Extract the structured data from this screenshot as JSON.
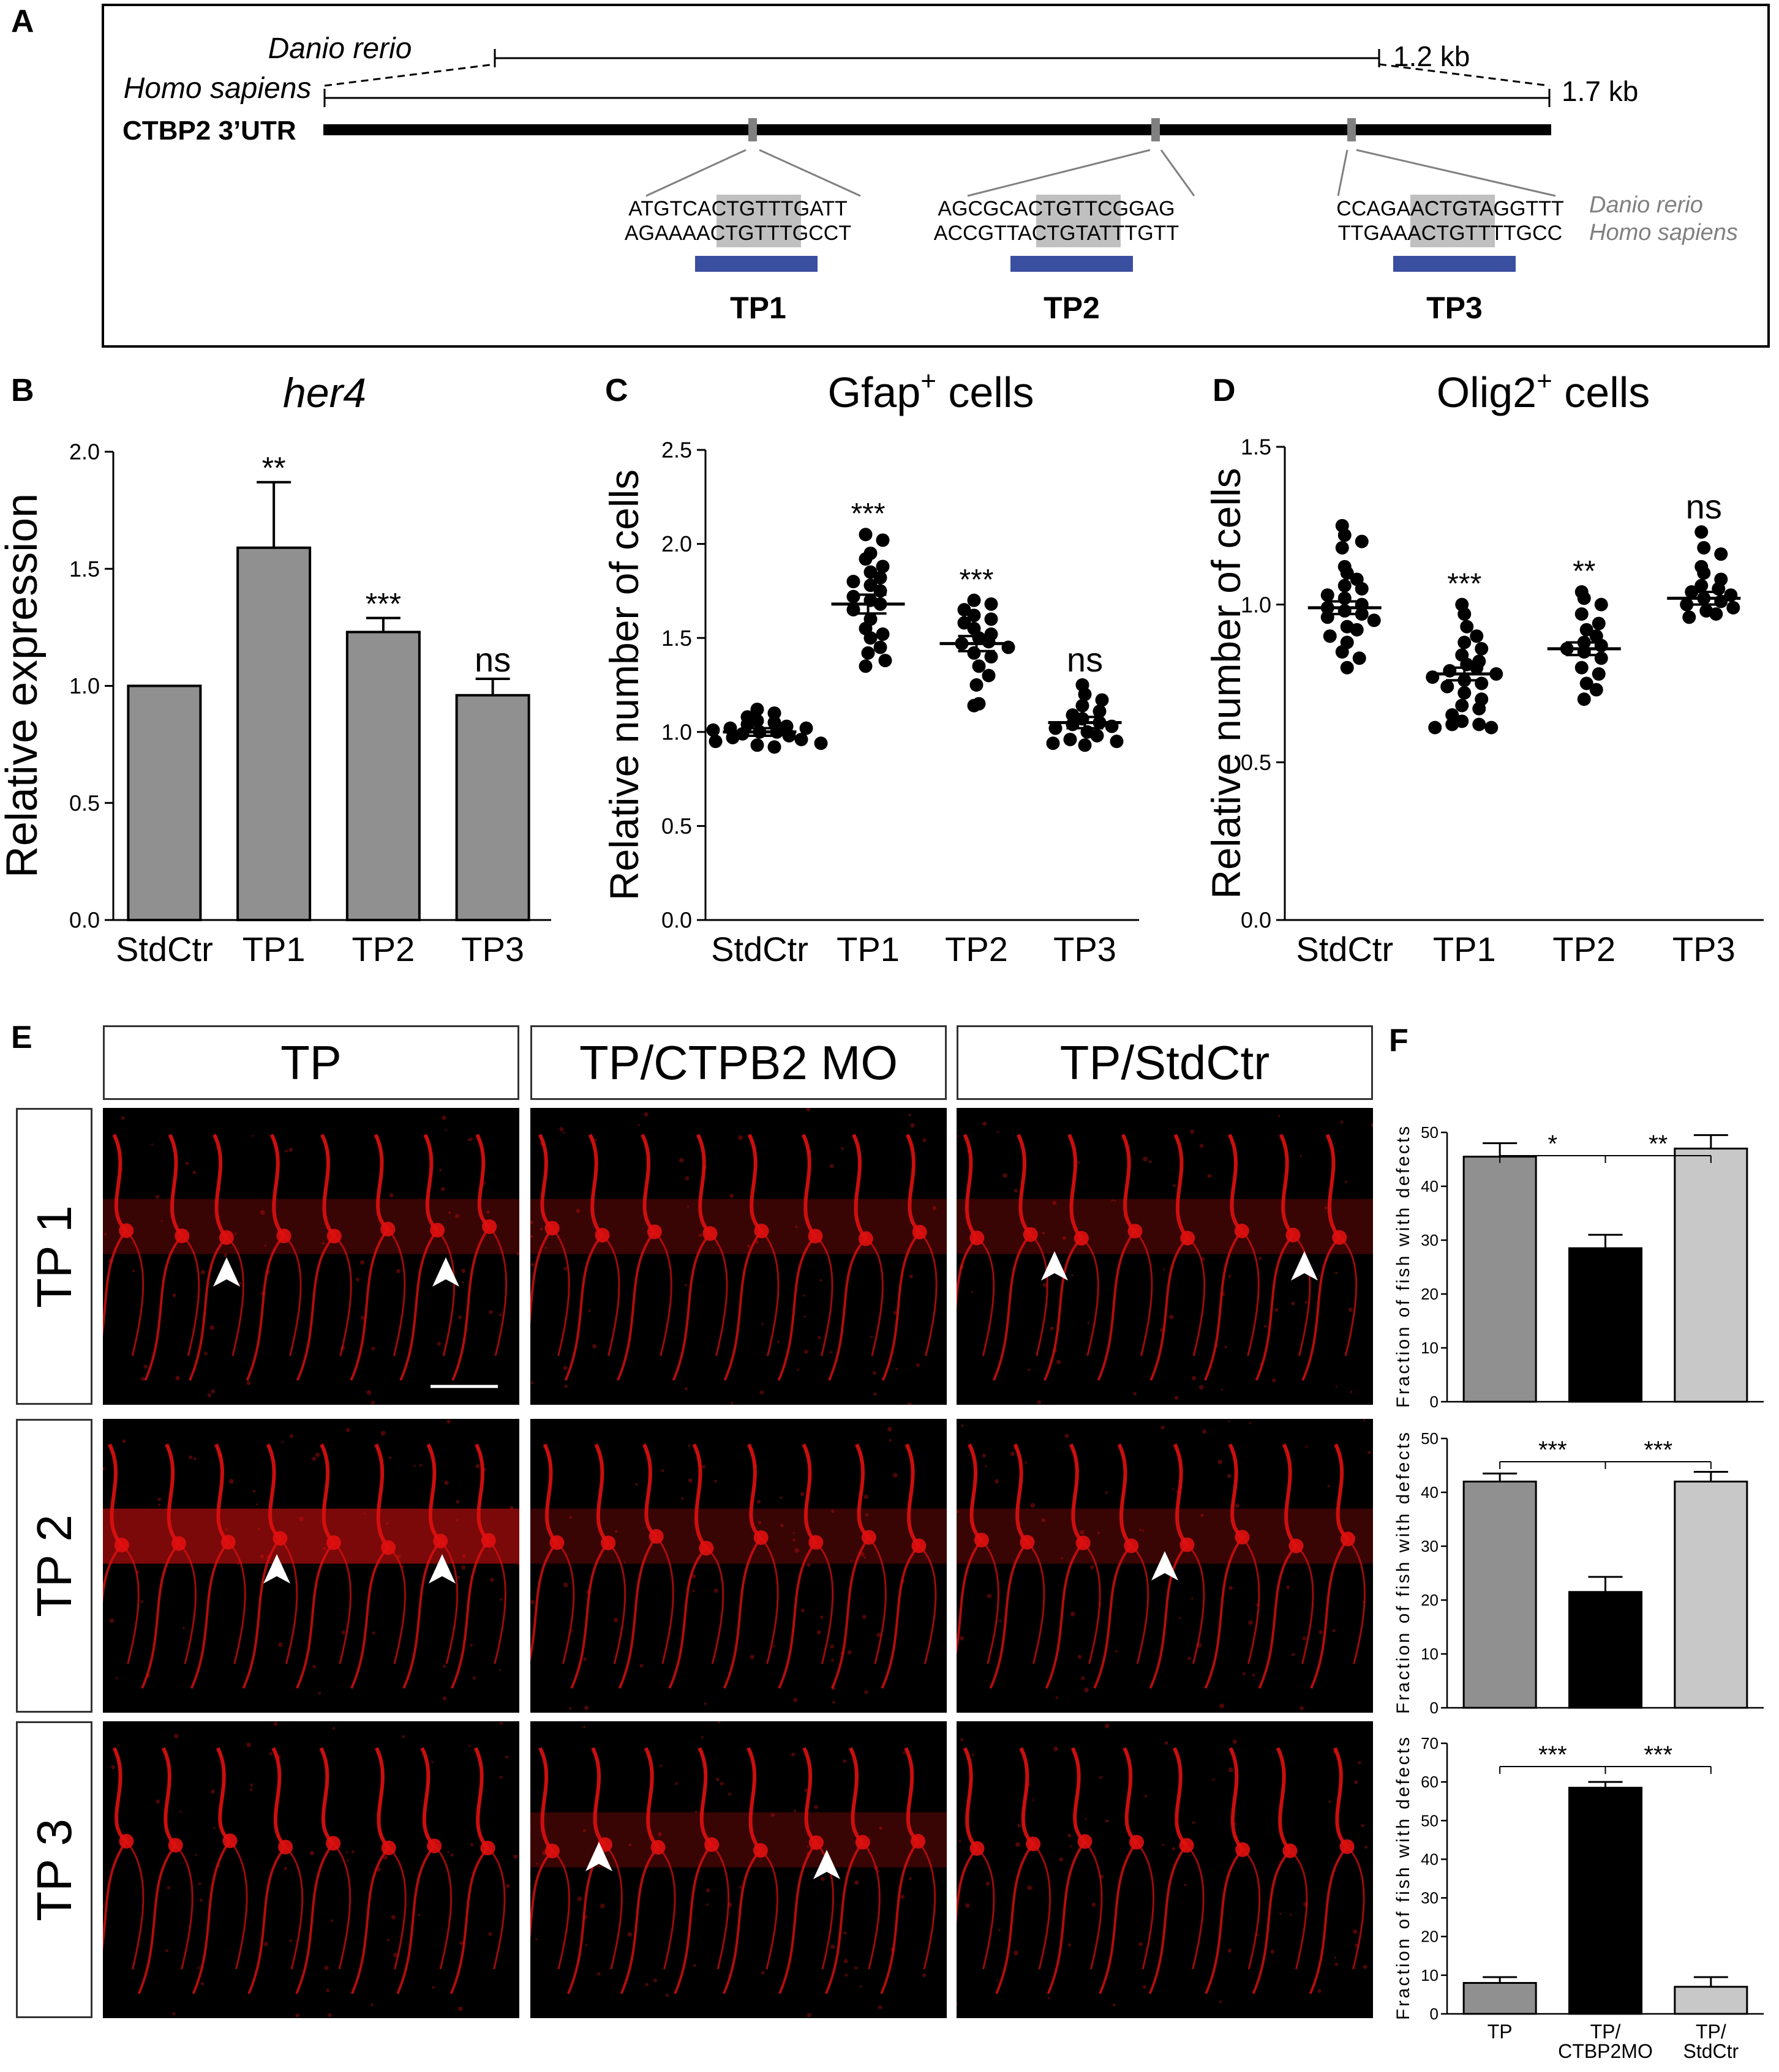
{
  "panels": {
    "A": "A",
    "B": "B",
    "C": "C",
    "D": "D",
    "E": "E",
    "F": "F"
  },
  "panel_a": {
    "species_zebrafish": "Danio rerio",
    "species_human": "Homo sapiens",
    "gene": "CTBP2 3’UTR",
    "length_zebrafish": "1.2 kb",
    "length_human": "1.7 kb",
    "legend_zebrafish": "Danio rerio",
    "legend_human": "Homo sapiens",
    "sites": [
      {
        "label": "TP1",
        "zebrafish_seq": "ATGTCACTGTTTGATT",
        "human_seq": "AGAAAACTGTTTGCCT"
      },
      {
        "label": "TP2",
        "zebrafish_seq": "AGCGCACTGTTCGGAG",
        "human_seq": "ACCGTTACTGTATTTGTT"
      },
      {
        "label": "TP3",
        "zebrafish_seq": "CCAGAACTGTAGGTTT",
        "human_seq": "TTGAAACTGTTTTGCC"
      }
    ],
    "colors": {
      "utr": "#000000",
      "site": "#808080",
      "highlight": "#c0c0c0",
      "protector": "#3a4fa0",
      "legend": "#808080"
    }
  },
  "panel_e": {
    "columns": [
      "TP",
      "TP/CTPB2 MO",
      "TP/StdCtr"
    ],
    "rows": [
      "TP 1",
      "TP 2",
      "TP 3"
    ],
    "image_color": "#e01010"
  },
  "chart_data": [
    {
      "id": "B",
      "type": "bar",
      "title": "her4",
      "ylabel": "Relative expression",
      "categories": [
        "StdCtr",
        "TP1",
        "TP2",
        "TP3"
      ],
      "values": [
        1.0,
        1.59,
        1.23,
        0.96
      ],
      "errors": [
        0.0,
        0.28,
        0.06,
        0.07
      ],
      "significance": [
        "",
        "**",
        "***",
        "ns"
      ],
      "ylim": [
        0,
        2.0
      ],
      "yticks": [
        "0.0",
        "0.5",
        "1.0",
        "1.5",
        "2.0"
      ],
      "bar_color": "#909090"
    },
    {
      "id": "C",
      "type": "scatter",
      "title": "Gfap",
      "title_sup": "+",
      "title_suffix": " cells",
      "ylabel": "Relative number of cells",
      "categories": [
        "StdCtr",
        "TP1",
        "TP2",
        "TP3"
      ],
      "means": [
        1.0,
        1.68,
        1.47,
        1.05
      ],
      "sem": [
        0.02,
        0.05,
        0.04,
        0.03
      ],
      "points": [
        [
          1.12,
          1.1,
          1.08,
          1.06,
          1.05,
          1.04,
          1.03,
          1.02,
          1.02,
          1.01,
          1.0,
          1.0,
          0.99,
          0.98,
          0.97,
          0.96,
          0.95,
          0.94,
          0.93,
          0.92
        ],
        [
          2.05,
          2.02,
          1.95,
          1.92,
          1.88,
          1.85,
          1.82,
          1.8,
          1.78,
          1.75,
          1.72,
          1.7,
          1.68,
          1.65,
          1.6,
          1.55,
          1.52,
          1.5,
          1.45,
          1.42,
          1.38,
          1.35
        ],
        [
          1.7,
          1.68,
          1.65,
          1.62,
          1.6,
          1.58,
          1.55,
          1.52,
          1.5,
          1.48,
          1.47,
          1.45,
          1.42,
          1.4,
          1.35,
          1.3,
          1.25,
          1.15,
          1.14
        ],
        [
          1.25,
          1.2,
          1.17,
          1.14,
          1.11,
          1.09,
          1.07,
          1.05,
          1.04,
          1.03,
          1.02,
          1.0,
          0.98,
          0.96,
          0.95,
          0.94,
          0.93
        ]
      ],
      "significance": [
        "",
        "***",
        "***",
        "ns"
      ],
      "ylim": [
        0,
        2.5
      ],
      "yticks": [
        "0.0",
        "0.5",
        "1.0",
        "1.5",
        "2.0",
        "2.5"
      ]
    },
    {
      "id": "D",
      "type": "scatter",
      "title": "Olig2",
      "title_sup": "+",
      "title_suffix": " cells",
      "ylabel": "Relative number of cells",
      "categories": [
        "StdCtr",
        "TP1",
        "TP2",
        "TP3"
      ],
      "means": [
        0.99,
        0.78,
        0.86,
        1.02
      ],
      "sem": [
        0.02,
        0.02,
        0.02,
        0.02
      ],
      "points": [
        [
          1.25,
          1.22,
          1.2,
          1.18,
          1.12,
          1.1,
          1.08,
          1.06,
          1.05,
          1.03,
          1.02,
          1.0,
          0.99,
          0.98,
          0.97,
          0.96,
          0.95,
          0.93,
          0.92,
          0.9,
          0.88,
          0.85,
          0.83,
          0.8
        ],
        [
          1.0,
          0.97,
          0.93,
          0.9,
          0.88,
          0.86,
          0.84,
          0.82,
          0.81,
          0.8,
          0.79,
          0.78,
          0.77,
          0.76,
          0.75,
          0.74,
          0.72,
          0.7,
          0.68,
          0.67,
          0.65,
          0.63,
          0.62,
          0.62,
          0.61,
          0.61
        ],
        [
          1.04,
          1.02,
          1.0,
          0.97,
          0.94,
          0.92,
          0.9,
          0.88,
          0.87,
          0.86,
          0.85,
          0.83,
          0.8,
          0.78,
          0.75,
          0.73,
          0.7
        ],
        [
          1.23,
          1.18,
          1.16,
          1.12,
          1.1,
          1.08,
          1.06,
          1.05,
          1.04,
          1.03,
          1.02,
          1.01,
          1.0,
          0.99,
          0.98,
          0.97,
          0.96
        ]
      ],
      "significance": [
        "",
        "***",
        "**",
        "ns"
      ],
      "ylim": [
        0,
        1.5
      ],
      "yticks": [
        "0.0",
        "0.5",
        "1.0",
        "1.5"
      ]
    },
    {
      "id": "F1",
      "type": "bar",
      "ylabel": "Fraction of fish with defects",
      "categories": [
        "TP",
        "TP/ CTBP2MO",
        "TP/ StdCtr"
      ],
      "values": [
        45.5,
        28.5,
        47
      ],
      "errors": [
        2.5,
        2.5,
        2.5
      ],
      "significance_brackets": [
        "*",
        "**"
      ],
      "ylim": [
        0,
        50
      ],
      "yticks": [
        "0",
        "10",
        "20",
        "30",
        "40",
        "50"
      ],
      "bar_colors": [
        "#909090",
        "#000000",
        "#c8c8c8"
      ]
    },
    {
      "id": "F2",
      "type": "bar",
      "ylabel": "Fraction of fish with defects",
      "categories": [
        "TP",
        "TP/ CTBP2MO",
        "TP/ StdCtr"
      ],
      "values": [
        42,
        21.5,
        42
      ],
      "errors": [
        1.5,
        2.8,
        1.8
      ],
      "significance_brackets": [
        "***",
        "***"
      ],
      "ylim": [
        0,
        50
      ],
      "yticks": [
        "0",
        "10",
        "20",
        "30",
        "40",
        "50"
      ],
      "bar_colors": [
        "#909090",
        "#000000",
        "#c8c8c8"
      ]
    },
    {
      "id": "F3",
      "type": "bar",
      "ylabel": "Fraction of fish with defects",
      "categories": [
        "TP",
        "TP/ CTBP2MO",
        "TP/ StdCtr"
      ],
      "values": [
        8,
        58.5,
        7
      ],
      "errors": [
        1.5,
        1.5,
        2.5
      ],
      "significance_brackets": [
        "***",
        "***"
      ],
      "ylim": [
        0,
        70
      ],
      "yticks": [
        "0",
        "10",
        "20",
        "30",
        "40",
        "50",
        "60",
        "70"
      ],
      "bar_colors": [
        "#909090",
        "#000000",
        "#c8c8c8"
      ]
    }
  ]
}
